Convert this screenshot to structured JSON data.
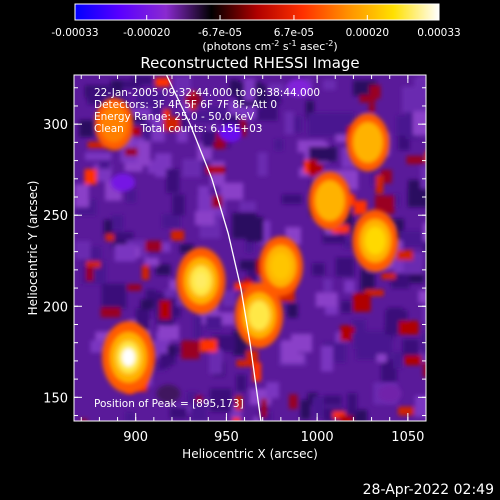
{
  "chart_data": {
    "type": "heatmap",
    "title": "Reconstructed RHESSI Image",
    "xlabel": "Heliocentric X (arcsec)",
    "ylabel": "Heliocentric Y (arcsec)",
    "xlim": [
      866,
      1060
    ],
    "ylim": [
      137,
      327
    ],
    "x_ticks": [
      900,
      950,
      1000,
      1050
    ],
    "y_ticks": [
      150,
      200,
      250,
      300
    ],
    "colorbar": {
      "range": [
        -0.00033,
        0.00033
      ],
      "ticks": [
        "-0.00033",
        "-0.00020",
        "-6.7e-05",
        "6.7e-05",
        "0.00020",
        "0.00033"
      ],
      "tick_values": [
        -0.00033,
        -0.0002,
        -6.7e-05,
        6.7e-05,
        0.0002,
        0.00033
      ],
      "unit_label": "(photons cm",
      "colors": [
        "#0000ff",
        "#5a00ff",
        "#8a2ad0",
        "#000000",
        "#b00000",
        "#ff3000",
        "#ff9000",
        "#ffe000",
        "#ffffff"
      ]
    },
    "annotations": [
      "22-Jan-2005 09:32:44.000 to 09:38:44.000",
      "Detectors: 3F 4F 5F 6F 7F 8F, Att 0",
      "Energy Range: 25.0 - 50.0 keV",
      "Clean     Total counts: 6.15E+03"
    ],
    "peak_label": "Position of Peak = [895,173]",
    "peak_position": [
      895,
      173
    ],
    "limb_curve": [
      [
        917,
        327
      ],
      [
        930,
        300
      ],
      [
        942,
        270
      ],
      [
        951,
        240
      ],
      [
        958,
        210
      ],
      [
        963,
        180
      ],
      [
        969,
        137
      ]
    ],
    "bright_sources": [
      {
        "x": 896,
        "y": 172,
        "value": 0.00033
      },
      {
        "x": 936,
        "y": 214,
        "value": 0.00028
      },
      {
        "x": 968,
        "y": 195,
        "value": 0.00027
      },
      {
        "x": 980,
        "y": 222,
        "value": 0.00022
      },
      {
        "x": 1032,
        "y": 236,
        "value": 0.00024
      },
      {
        "x": 1007,
        "y": 258,
        "value": 0.0002
      },
      {
        "x": 1028,
        "y": 290,
        "value": 0.0002
      },
      {
        "x": 888,
        "y": 300,
        "value": 0.00015
      }
    ],
    "dim_sources": [
      {
        "x": 893,
        "y": 268,
        "value": -0.0002
      },
      {
        "x": 952,
        "y": 295,
        "value": -0.00022
      },
      {
        "x": 990,
        "y": 320,
        "value": -0.00018
      },
      {
        "x": 1040,
        "y": 152,
        "value": -0.00015
      },
      {
        "x": 918,
        "y": 152,
        "value": -0.00012
      }
    ]
  },
  "footer": {
    "timestamp": "28-Apr-2022 02:49"
  },
  "colorbar_exponent_label": {
    "part1": "(photons cm",
    "sup1": "-2",
    "part2": " s",
    "sup2": "-1",
    "part3": " asec",
    "sup3": "-2",
    "part4": ")"
  }
}
